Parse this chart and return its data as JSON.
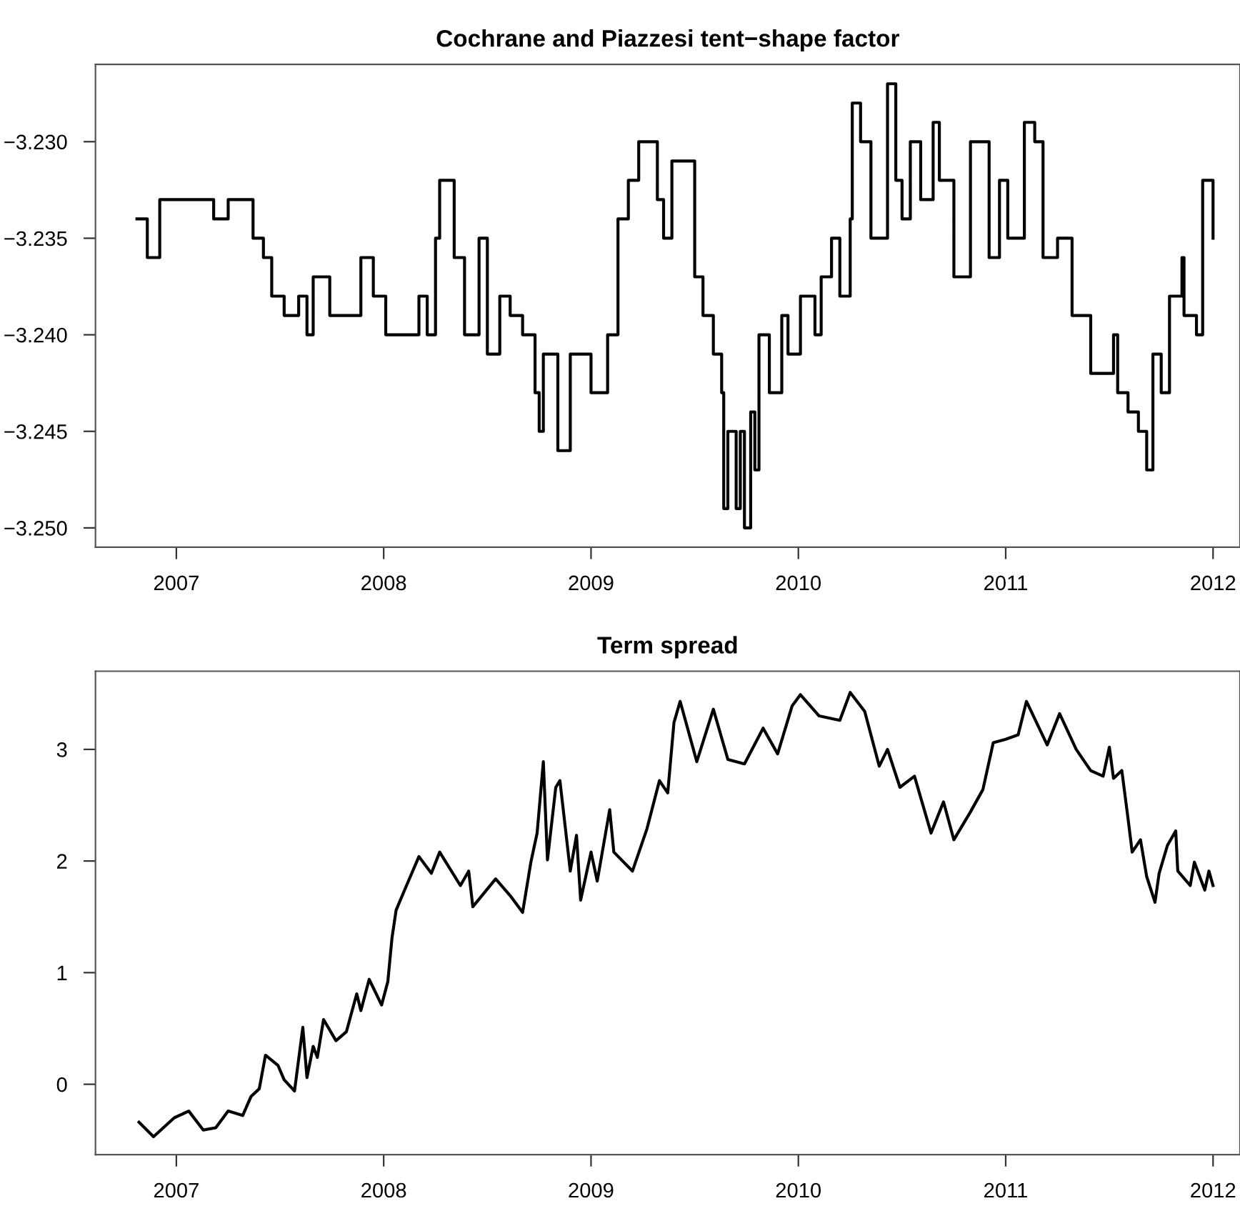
{
  "chart_data": [
    {
      "type": "step",
      "title": "Cochrane and Piazzesi tent−shape factor",
      "grid": false,
      "line_style": "solid",
      "xlim": [
        2006.61,
        2012.13
      ],
      "xticks": [
        2007,
        2008,
        2009,
        2010,
        2011,
        2012
      ],
      "ylim": [
        -3.251,
        -3.226
      ],
      "yticks": [
        {
          "value": -3.25,
          "label": "−3.250"
        },
        {
          "value": -3.245,
          "label": "−3.245"
        },
        {
          "value": -3.24,
          "label": "−3.240"
        },
        {
          "value": -3.235,
          "label": "−3.235"
        },
        {
          "value": -3.23,
          "label": "−3.230"
        }
      ],
      "series": [
        {
          "color": "#000000",
          "x": [
            2006.81,
            2006.86,
            2006.92,
            2007.04,
            2007.18,
            2007.25,
            2007.32,
            2007.37,
            2007.42,
            2007.46,
            2007.52,
            2007.59,
            2007.63,
            2007.66,
            2007.74,
            2007.89,
            2007.95,
            2008.01,
            2008.14,
            2008.17,
            2008.21,
            2008.25,
            2008.27,
            2008.34,
            2008.39,
            2008.46,
            2008.5,
            2008.56,
            2008.61,
            2008.67,
            2008.73,
            2008.75,
            2008.77,
            2008.84,
            2008.9,
            2009.0,
            2009.08,
            2009.13,
            2009.18,
            2009.23,
            2009.32,
            2009.35,
            2009.39,
            2009.5,
            2009.54,
            2009.59,
            2009.63,
            2009.64,
            2009.66,
            2009.7,
            2009.72,
            2009.74,
            2009.77,
            2009.79,
            2009.81,
            2009.86,
            2009.92,
            2009.95,
            2010.01,
            2010.08,
            2010.11,
            2010.16,
            2010.2,
            2010.25,
            2010.26,
            2010.3,
            2010.35,
            2010.43,
            2010.47,
            2010.5,
            2010.54,
            2010.59,
            2010.65,
            2010.68,
            2010.75,
            2010.83,
            2010.92,
            2010.97,
            2011.01,
            2011.09,
            2011.14,
            2011.18,
            2011.25,
            2011.32,
            2011.41,
            2011.52,
            2011.54,
            2011.59,
            2011.64,
            2011.68,
            2011.71,
            2011.75,
            2011.79,
            2011.85,
            2011.86,
            2011.92,
            2011.95,
            2012.0
          ],
          "values": [
            -3.234,
            -3.236,
            -3.233,
            -3.233,
            -3.234,
            -3.233,
            -3.233,
            -3.235,
            -3.236,
            -3.238,
            -3.239,
            -3.238,
            -3.24,
            -3.237,
            -3.239,
            -3.236,
            -3.238,
            -3.24,
            -3.24,
            -3.238,
            -3.24,
            -3.235,
            -3.232,
            -3.236,
            -3.24,
            -3.235,
            -3.241,
            -3.238,
            -3.239,
            -3.24,
            -3.243,
            -3.245,
            -3.241,
            -3.246,
            -3.241,
            -3.243,
            -3.24,
            -3.234,
            -3.232,
            -3.23,
            -3.233,
            -3.235,
            -3.231,
            -3.237,
            -3.239,
            -3.241,
            -3.243,
            -3.249,
            -3.245,
            -3.249,
            -3.245,
            -3.25,
            -3.244,
            -3.247,
            -3.24,
            -3.243,
            -3.239,
            -3.241,
            -3.238,
            -3.24,
            -3.237,
            -3.235,
            -3.238,
            -3.234,
            -3.228,
            -3.23,
            -3.235,
            -3.227,
            -3.232,
            -3.234,
            -3.23,
            -3.233,
            -3.229,
            -3.232,
            -3.237,
            -3.23,
            -3.236,
            -3.232,
            -3.235,
            -3.229,
            -3.23,
            -3.236,
            -3.235,
            -3.239,
            -3.242,
            -3.24,
            -3.243,
            -3.244,
            -3.245,
            -3.247,
            -3.241,
            -3.243,
            -3.238,
            -3.236,
            -3.239,
            -3.24,
            -3.232,
            -3.235
          ]
        }
      ]
    },
    {
      "type": "line",
      "title": "Term spread",
      "grid": false,
      "line_style": "solid",
      "xlim": [
        2006.61,
        2012.13
      ],
      "xticks": [
        2007,
        2008,
        2009,
        2010,
        2011,
        2012
      ],
      "ylim": [
        -0.63,
        3.7
      ],
      "yticks": [
        0,
        1,
        2,
        3
      ],
      "series": [
        {
          "color": "#000000",
          "x": [
            2006.82,
            2006.89,
            2006.99,
            2007.06,
            2007.13,
            2007.19,
            2007.25,
            2007.32,
            2007.36,
            2007.4,
            2007.43,
            2007.49,
            2007.52,
            2007.57,
            2007.61,
            2007.63,
            2007.66,
            2007.68,
            2007.71,
            2007.77,
            2007.82,
            2007.87,
            2007.89,
            2007.93,
            2007.99,
            2008.02,
            2008.04,
            2008.06,
            2008.11,
            2008.17,
            2008.23,
            2008.27,
            2008.37,
            2008.41,
            2008.43,
            2008.54,
            2008.61,
            2008.67,
            2008.71,
            2008.74,
            2008.77,
            2008.79,
            2008.83,
            2008.85,
            2008.9,
            2008.93,
            2008.95,
            2009.0,
            2009.03,
            2009.09,
            2009.11,
            2009.2,
            2009.27,
            2009.33,
            2009.37,
            2009.4,
            2009.43,
            2009.51,
            2009.59,
            2009.66,
            2009.74,
            2009.83,
            2009.9,
            2009.97,
            2010.01,
            2010.1,
            2010.2,
            2010.25,
            2010.32,
            2010.39,
            2010.43,
            2010.49,
            2010.56,
            2010.64,
            2010.7,
            2010.75,
            2010.83,
            2010.89,
            2010.94,
            2011.0,
            2011.06,
            2011.1,
            2011.2,
            2011.26,
            2011.34,
            2011.41,
            2011.47,
            2011.5,
            2011.52,
            2011.56,
            2011.59,
            2011.61,
            2011.65,
            2011.68,
            2011.72,
            2011.74,
            2011.78,
            2011.82,
            2011.83,
            2011.89,
            2011.91,
            2011.96,
            2011.98,
            2012.0
          ],
          "values": [
            -0.34,
            -0.47,
            -0.3,
            -0.24,
            -0.41,
            -0.39,
            -0.24,
            -0.28,
            -0.11,
            -0.04,
            0.26,
            0.17,
            0.04,
            -0.06,
            0.51,
            0.06,
            0.34,
            0.24,
            0.58,
            0.39,
            0.47,
            0.81,
            0.66,
            0.94,
            0.71,
            0.92,
            1.31,
            1.56,
            1.78,
            2.04,
            1.89,
            2.08,
            1.78,
            1.91,
            1.59,
            1.84,
            1.69,
            1.54,
            1.99,
            2.25,
            2.89,
            2.01,
            2.66,
            2.72,
            1.91,
            2.23,
            1.65,
            2.08,
            1.82,
            2.46,
            2.08,
            1.91,
            2.29,
            2.72,
            2.61,
            3.24,
            3.43,
            2.89,
            3.36,
            2.91,
            2.87,
            3.19,
            2.96,
            3.39,
            3.49,
            3.3,
            3.26,
            3.51,
            3.34,
            2.85,
            3.0,
            2.66,
            2.76,
            2.25,
            2.53,
            2.19,
            2.44,
            2.64,
            3.06,
            3.09,
            3.13,
            3.43,
            3.04,
            3.32,
            3.0,
            2.81,
            2.76,
            3.02,
            2.74,
            2.81,
            2.38,
            2.08,
            2.19,
            1.86,
            1.63,
            1.89,
            2.14,
            2.27,
            1.91,
            1.78,
            1.99,
            1.74,
            1.91,
            1.78
          ]
        }
      ]
    }
  ]
}
